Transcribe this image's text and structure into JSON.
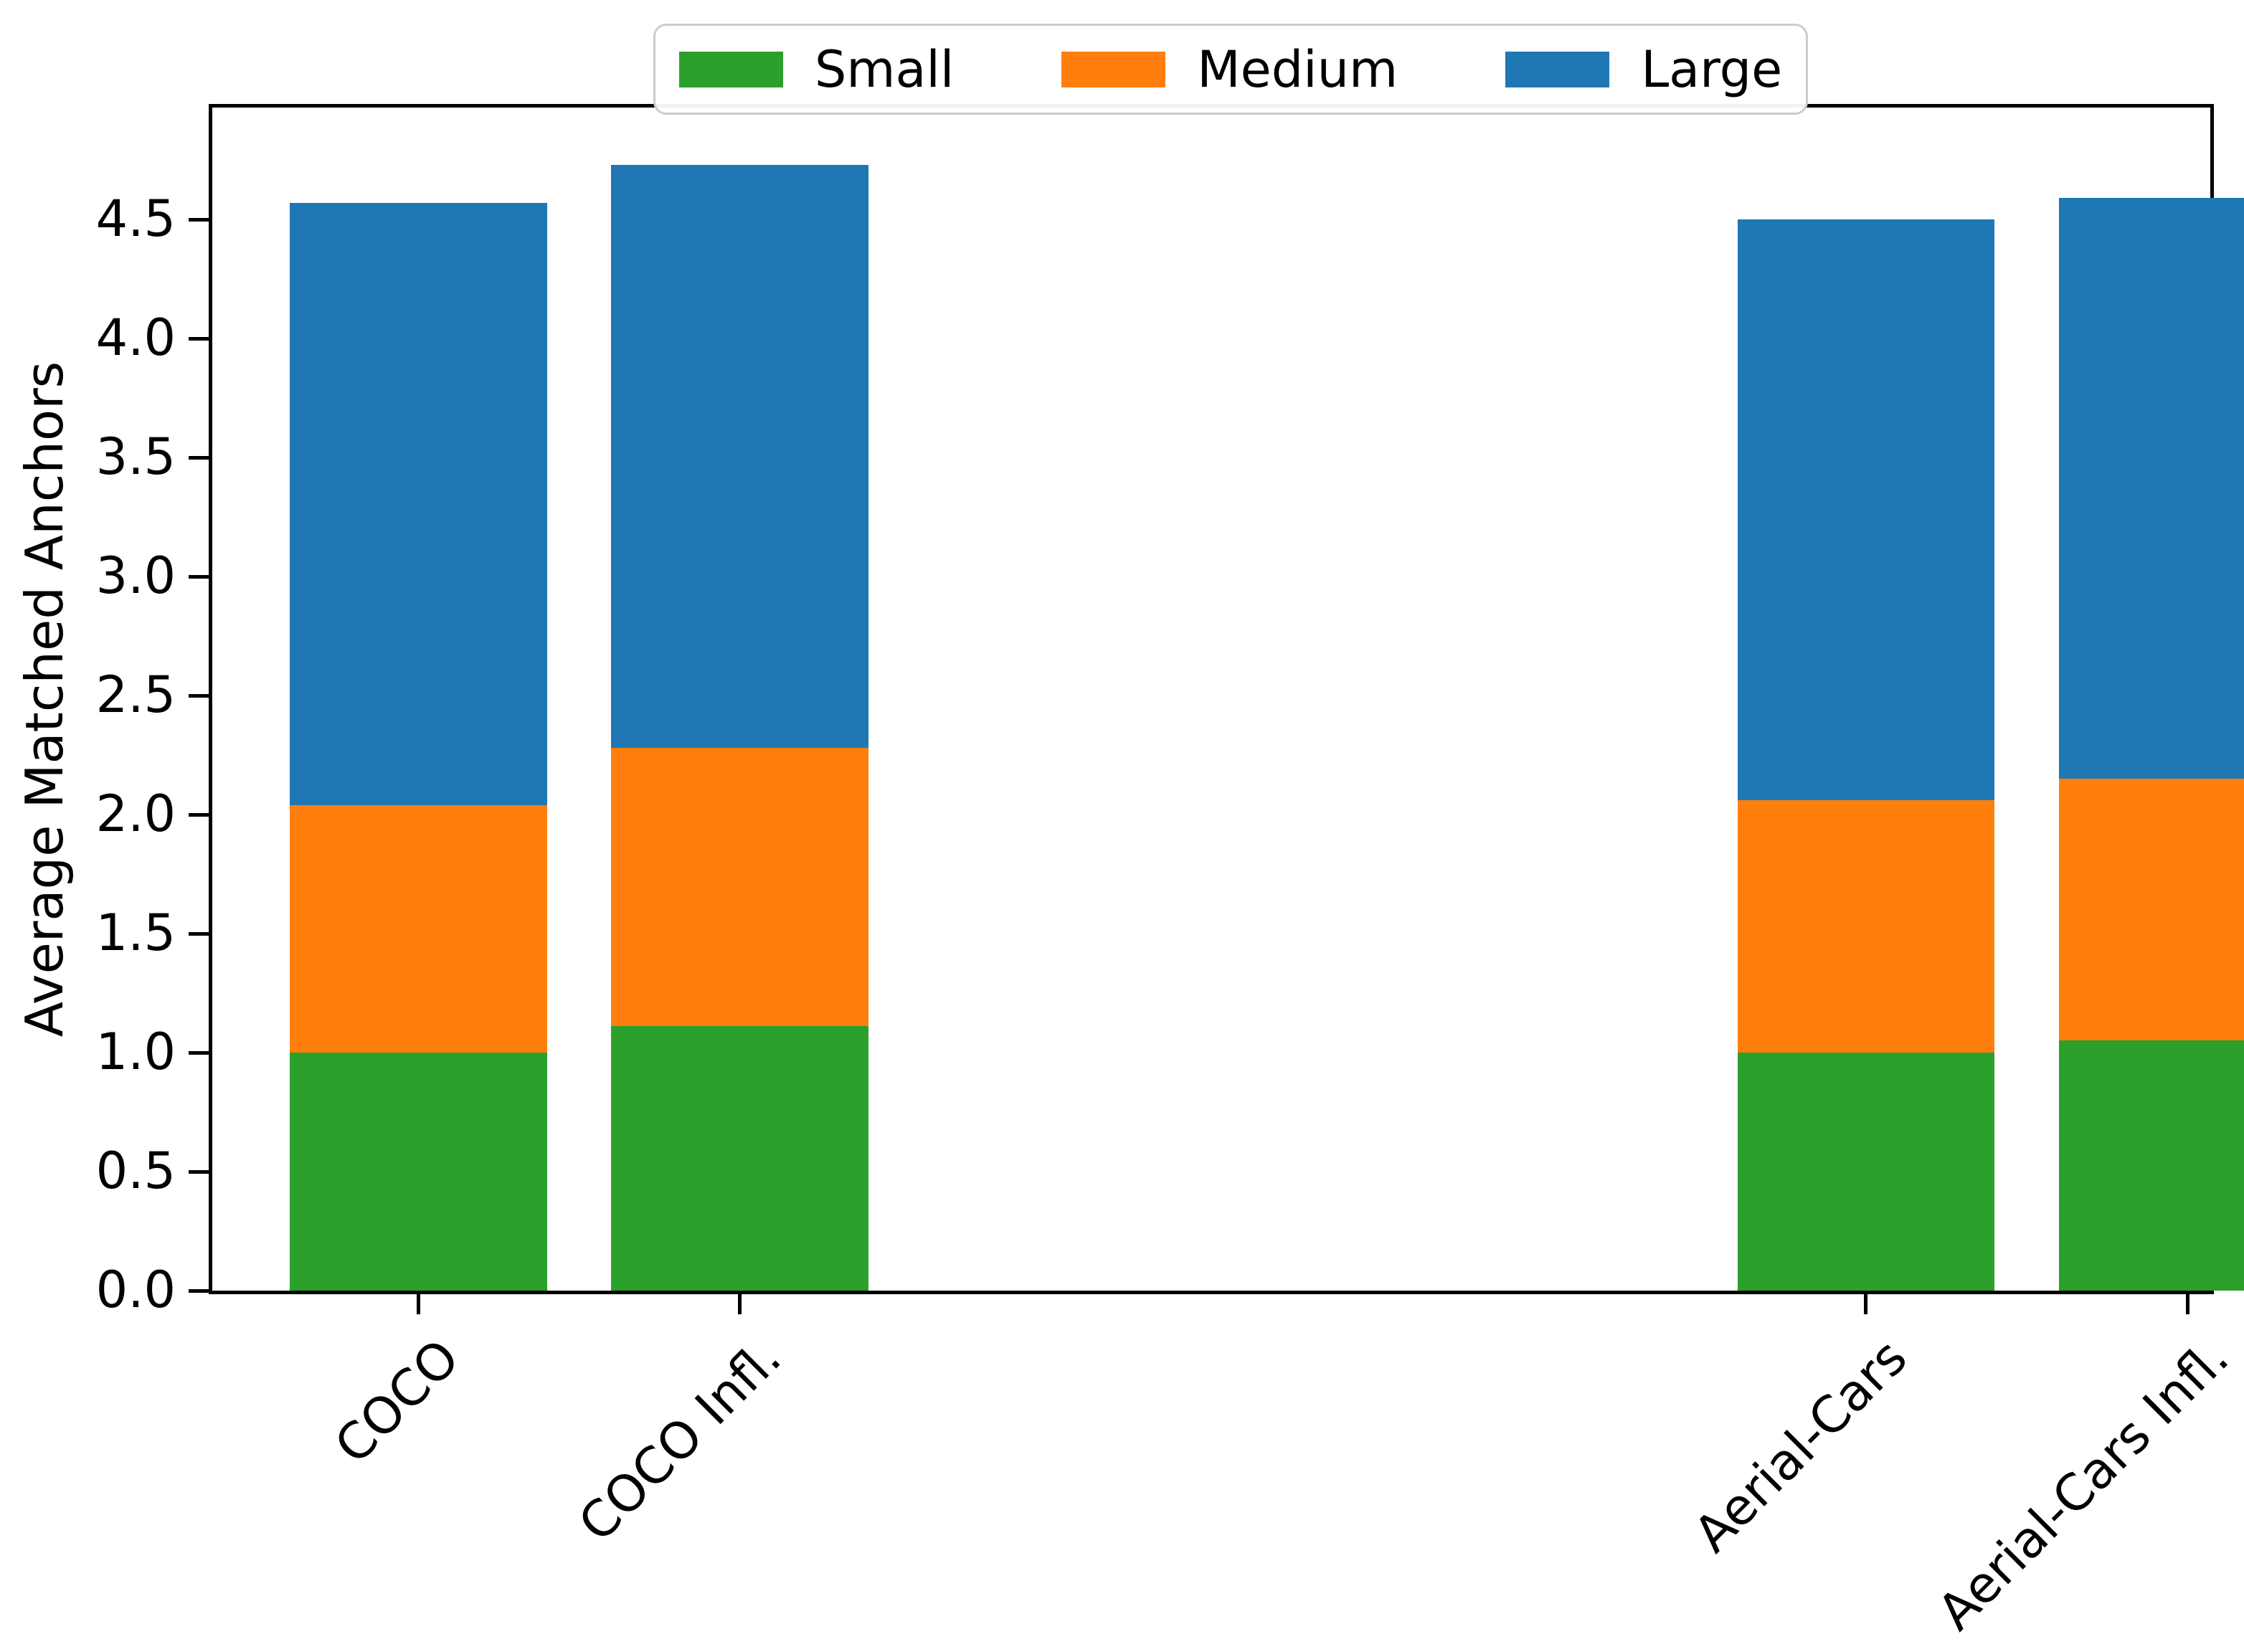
{
  "chart_data": {
    "type": "bar",
    "stacked": true,
    "title": "",
    "xlabel": "",
    "ylabel": "Average Matched Anchors",
    "categories": [
      "COCO",
      "COCO Infl.",
      "Aerial-Cars",
      "Aerial-Cars Infl."
    ],
    "x_positions": [
      0,
      1,
      4.5,
      5.5
    ],
    "bar_width": 0.8,
    "xlim": [
      -0.64,
      5.57
    ],
    "ylim": [
      0,
      4.97
    ],
    "ytick_values": [
      0,
      0.5,
      1,
      1.5,
      2,
      2.5,
      3,
      3.5,
      4,
      4.5
    ],
    "ytick_labels": [
      "0.0",
      "0.5",
      "1.0",
      "1.5",
      "2.0",
      "2.5",
      "3.0",
      "3.5",
      "4.0",
      "4.5"
    ],
    "xtick_rotation_deg": 45,
    "grid": false,
    "series": [
      {
        "name": "Small",
        "color": "#2ca02c",
        "values": [
          1.0,
          1.11,
          1.0,
          1.05
        ]
      },
      {
        "name": "Medium",
        "color": "#ff7f0e",
        "values": [
          1.04,
          1.17,
          1.06,
          1.1
        ]
      },
      {
        "name": "Large",
        "color": "#1f77b4",
        "values": [
          2.53,
          2.45,
          2.44,
          2.44
        ]
      }
    ],
    "stack_totals": [
      4.57,
      4.73,
      4.5,
      4.59
    ],
    "legend": {
      "position": "upper center",
      "labels": [
        "Small",
        "Medium",
        "Large"
      ]
    },
    "colors": {
      "axis": "#000000",
      "text": "#000000",
      "legend_border": "#cccccc",
      "background": "#ffffff"
    }
  }
}
